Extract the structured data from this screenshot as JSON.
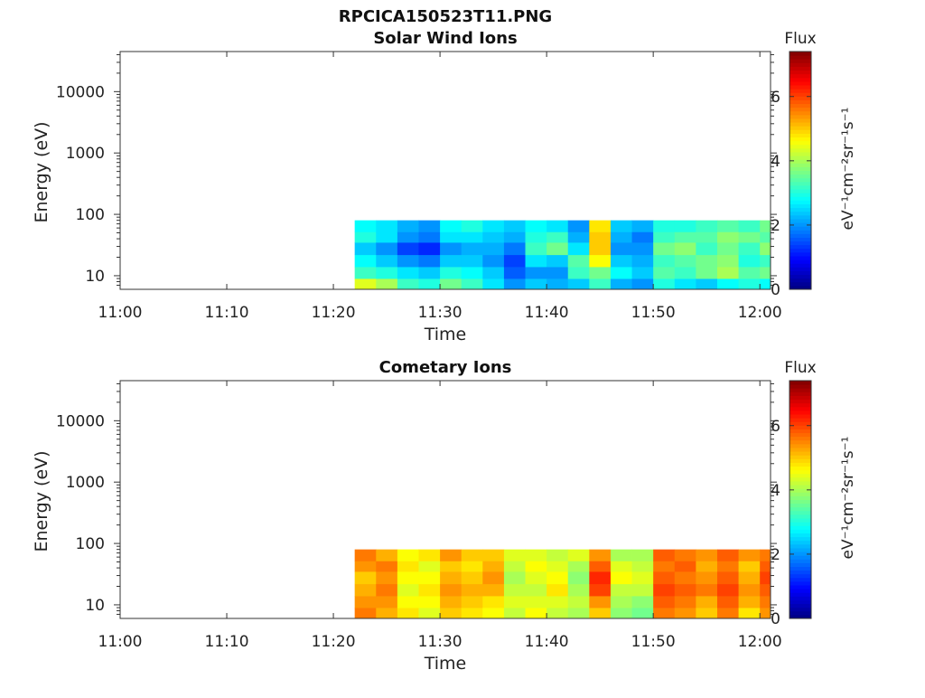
{
  "figure": {
    "filename": "RPCICA150523T11.PNG"
  },
  "chart_data": [
    {
      "type": "heatmap",
      "title": "Solar Wind Ions",
      "xlabel": "Time",
      "ylabel": "Energy (eV)",
      "xticks": [
        "11:00",
        "11:10",
        "11:20",
        "11:30",
        "11:40",
        "11:50",
        "12:00"
      ],
      "yticks": [
        "10",
        "100",
        "1000",
        "10000"
      ],
      "yscale": "log",
      "ylim": [
        6,
        45000
      ],
      "xlim": [
        "11:00",
        "12:01"
      ],
      "data_time_range": [
        "11:22",
        "12:01"
      ],
      "energy_range": [
        6,
        80
      ],
      "energy_bands": [
        [
          6,
          9
        ],
        [
          9,
          14
        ],
        [
          14,
          22
        ],
        [
          22,
          35
        ],
        [
          35,
          52
        ],
        [
          52,
          80
        ]
      ],
      "time_bins": [
        "11:22",
        "11:24",
        "11:26",
        "11:28",
        "11:30",
        "11:32",
        "11:34",
        "11:36",
        "11:38",
        "11:40",
        "11:42",
        "11:44",
        "11:46",
        "11:48",
        "11:50",
        "11:52",
        "11:54",
        "11:56",
        "11:58",
        "12:00"
      ],
      "values": [
        [
          4.4,
          3.2,
          2.8,
          2.4,
          3.0,
          2.8
        ],
        [
          4.0,
          3.0,
          2.4,
          2.0,
          2.6,
          2.6
        ],
        [
          3.2,
          2.6,
          2.0,
          1.4,
          2.0,
          2.2
        ],
        [
          3.0,
          2.4,
          1.8,
          1.2,
          1.8,
          2.0
        ],
        [
          3.6,
          3.0,
          2.4,
          2.0,
          2.6,
          2.8
        ],
        [
          3.2,
          2.8,
          2.4,
          2.2,
          2.6,
          3.0
        ],
        [
          2.6,
          2.4,
          2.0,
          2.2,
          2.4,
          2.6
        ],
        [
          2.0,
          1.6,
          1.4,
          1.8,
          2.2,
          2.4
        ],
        [
          2.4,
          2.0,
          2.6,
          3.2,
          3.0,
          2.8
        ],
        [
          2.2,
          2.0,
          2.4,
          3.6,
          3.2,
          2.6
        ],
        [
          2.4,
          3.2,
          3.4,
          2.6,
          2.2,
          2.0
        ],
        [
          3.2,
          3.6,
          4.6,
          5.0,
          5.0,
          4.8
        ],
        [
          2.2,
          2.8,
          2.4,
          2.0,
          2.2,
          2.4
        ],
        [
          2.0,
          2.4,
          2.2,
          2.0,
          1.8,
          2.2
        ],
        [
          3.0,
          3.4,
          3.2,
          3.6,
          3.2,
          3.0
        ],
        [
          2.6,
          3.2,
          3.4,
          3.8,
          3.4,
          3.0
        ],
        [
          2.4,
          3.6,
          3.6,
          3.2,
          3.4,
          3.2
        ],
        [
          2.8,
          4.0,
          3.8,
          3.6,
          3.8,
          3.4
        ],
        [
          3.0,
          3.4,
          3.0,
          3.2,
          3.6,
          3.2
        ],
        [
          2.8,
          3.6,
          3.2,
          3.8,
          3.4,
          3.6
        ]
      ],
      "colorbar": {
        "title": "Flux",
        "label": "eV⁻¹cm⁻²sr⁻¹s⁻¹",
        "ticks": [
          "0",
          "2",
          "4",
          "6"
        ],
        "range": [
          0,
          7.4
        ],
        "colormap": "jet"
      }
    },
    {
      "type": "heatmap",
      "title": "Cometary Ions",
      "xlabel": "Time",
      "ylabel": "Energy (eV)",
      "xticks": [
        "11:00",
        "11:10",
        "11:20",
        "11:30",
        "11:40",
        "11:50",
        "12:00"
      ],
      "yticks": [
        "10",
        "100",
        "1000",
        "10000"
      ],
      "yscale": "log",
      "ylim": [
        6,
        45000
      ],
      "xlim": [
        "11:00",
        "12:01"
      ],
      "data_time_range": [
        "11:22",
        "12:01"
      ],
      "energy_range": [
        6,
        80
      ],
      "energy_bands": [
        [
          6,
          9
        ],
        [
          9,
          14
        ],
        [
          14,
          22
        ],
        [
          22,
          35
        ],
        [
          35,
          52
        ],
        [
          52,
          80
        ]
      ],
      "time_bins": [
        "11:22",
        "11:24",
        "11:26",
        "11:28",
        "11:30",
        "11:32",
        "11:34",
        "11:36",
        "11:38",
        "11:40",
        "11:42",
        "11:44",
        "11:46",
        "11:48",
        "11:50",
        "11:52",
        "11:54",
        "11:56",
        "11:58",
        "12:00"
      ],
      "values": [
        [
          5.6,
          5.4,
          5.2,
          5.0,
          5.4,
          5.6
        ],
        [
          5.2,
          5.4,
          5.6,
          5.4,
          5.6,
          5.2
        ],
        [
          4.8,
          4.6,
          4.4,
          4.6,
          4.8,
          4.6
        ],
        [
          4.4,
          4.6,
          4.8,
          4.6,
          4.4,
          4.8
        ],
        [
          5.0,
          5.2,
          5.4,
          5.2,
          5.0,
          5.4
        ],
        [
          4.8,
          5.0,
          5.2,
          5.0,
          4.8,
          5.0
        ],
        [
          4.6,
          4.8,
          5.2,
          5.4,
          5.2,
          5.0
        ],
        [
          4.2,
          4.4,
          4.2,
          4.0,
          4.2,
          4.4
        ],
        [
          4.6,
          4.4,
          4.2,
          4.4,
          4.6,
          4.4
        ],
        [
          4.2,
          4.4,
          4.8,
          4.6,
          4.4,
          4.2
        ],
        [
          4.0,
          4.2,
          4.0,
          3.8,
          4.0,
          4.4
        ],
        [
          5.0,
          5.4,
          6.0,
          6.2,
          5.8,
          5.4
        ],
        [
          3.8,
          4.0,
          4.2,
          4.6,
          4.4,
          4.0
        ],
        [
          3.6,
          3.8,
          4.2,
          4.4,
          4.2,
          4.0
        ],
        [
          5.6,
          5.8,
          6.0,
          5.8,
          5.6,
          5.8
        ],
        [
          5.4,
          5.6,
          5.8,
          5.6,
          5.8,
          5.6
        ],
        [
          5.0,
          5.2,
          5.6,
          5.4,
          5.2,
          5.4
        ],
        [
          5.6,
          5.8,
          6.0,
          5.8,
          5.6,
          5.8
        ],
        [
          4.8,
          5.2,
          5.4,
          5.2,
          5.0,
          5.4
        ],
        [
          5.4,
          5.6,
          5.8,
          6.0,
          5.8,
          5.6
        ]
      ],
      "colorbar": {
        "title": "Flux",
        "label": "eV⁻¹cm⁻²sr⁻¹s⁻¹",
        "ticks": [
          "0",
          "2",
          "4",
          "6"
        ],
        "range": [
          0,
          7.4
        ],
        "colormap": "jet"
      }
    }
  ]
}
